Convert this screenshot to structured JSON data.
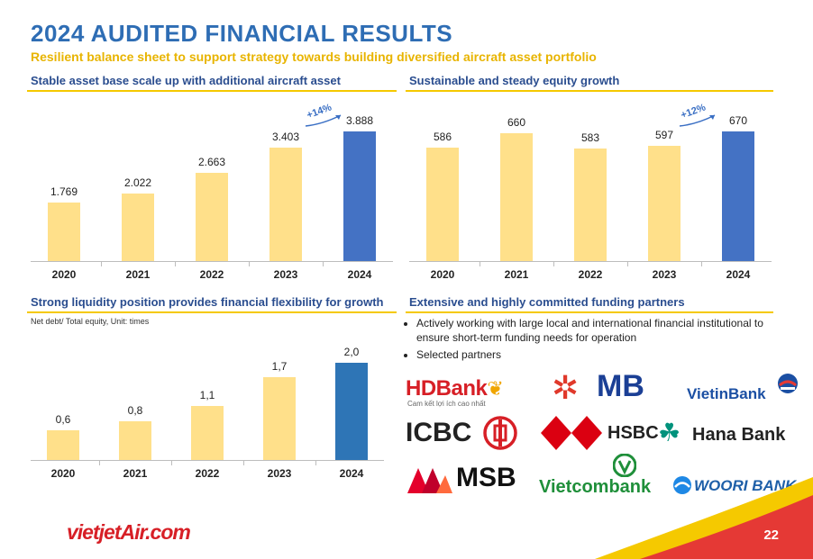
{
  "title": "2024 AUDITED FINANCIAL RESULTS",
  "subtitle": "Resilient balance sheet to support strategy towards building diversified aircraft asset portfolio",
  "sections": {
    "assets": {
      "heading": "Stable asset base scale up with additional aircraft asset",
      "growth": "+14%"
    },
    "equity": {
      "heading": "Sustainable and steady equity growth",
      "growth": "+12%"
    },
    "liquidity": {
      "heading": "Strong liquidity position provides financial flexibility for growth",
      "note": "Net debt/ Total equity, Unit: times"
    },
    "funding": {
      "heading": "Extensive and highly committed funding partners",
      "bullets": [
        "Actively working with large local and international financial institutional to ensure short-term funding needs for operation",
        "Selected partners"
      ]
    }
  },
  "chart_data": [
    {
      "type": "bar",
      "categories": [
        "2020",
        "2021",
        "2022",
        "2023",
        "2024"
      ],
      "values": [
        1.769,
        2.022,
        2.663,
        3.403,
        3.888
      ],
      "labels": [
        "1.769",
        "2.022",
        "2.663",
        "3.403",
        "3.888"
      ],
      "ylim": [
        0,
        4.6
      ]
    },
    {
      "type": "bar",
      "categories": [
        "2020",
        "2021",
        "2022",
        "2023",
        "2024"
      ],
      "values": [
        586,
        660,
        583,
        597,
        670
      ],
      "labels": [
        "586",
        "660",
        "583",
        "597",
        "670"
      ],
      "ylim": [
        0,
        790
      ]
    },
    {
      "type": "bar",
      "categories": [
        "2020",
        "2021",
        "2022",
        "2023",
        "2024"
      ],
      "values": [
        0.6,
        0.8,
        1.1,
        1.7,
        2.0
      ],
      "labels": [
        "0,6",
        "0,8",
        "1,1",
        "1,7",
        "2,0"
      ],
      "ylim": [
        0,
        2.6
      ]
    }
  ],
  "colors": {
    "regular_bar": "#ffe08a",
    "highlight_bar_1": "#4472c4",
    "highlight_bar_2": "#2e75b6",
    "heading": "#2a4d8f",
    "accent": "#f5c900",
    "title": "#2e6db4"
  },
  "partners": {
    "hdbank": "HDBank",
    "hdbank_tagline": "Cam kết lợi ích cao nhất",
    "mb": "MB",
    "vietinbank": "VietinBank",
    "icbc": "ICBC",
    "hsbc": "HSBC",
    "hanabank": "Hana Bank",
    "msb": "MSB",
    "vietcombank": "Vietcombank",
    "wooribank": "WOORI BANK"
  },
  "brand": "vietjetAir.com",
  "page_number": "22"
}
